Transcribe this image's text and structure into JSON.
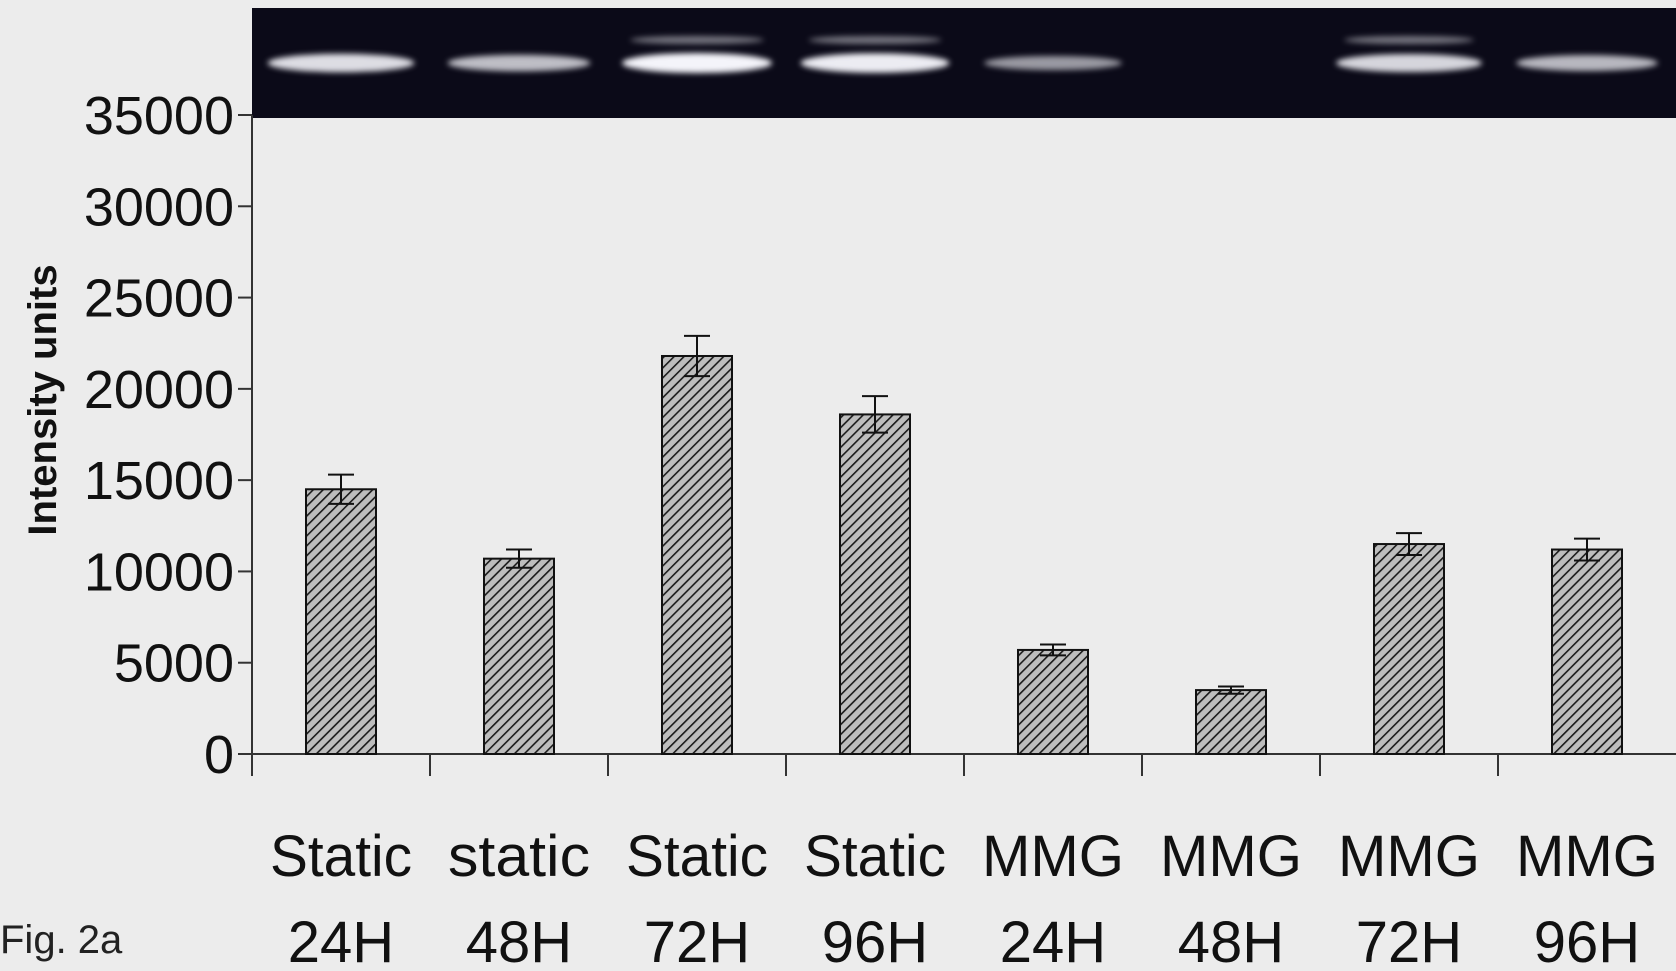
{
  "figure_label": "Fig. 2a",
  "colors": {
    "background": "#ececec",
    "bar_fill": "#bdbdbd",
    "bar_hatch": "#1a1a1a",
    "gel_background": "#0b0a18",
    "gel_band": "#f4f4fa",
    "axis": "#333333"
  },
  "chart_data": {
    "type": "bar",
    "title": "",
    "xlabel": "",
    "ylabel": "Intensity units",
    "ylim": [
      0,
      35000
    ],
    "yticks": [
      0,
      5000,
      10000,
      15000,
      20000,
      25000,
      30000,
      35000
    ],
    "grid": false,
    "legend": "none",
    "categories": [
      [
        "Static",
        "24H"
      ],
      [
        "static",
        "48H"
      ],
      [
        "Static",
        "72H"
      ],
      [
        "Static",
        "96H"
      ],
      [
        "MMG",
        "24H"
      ],
      [
        "MMG",
        "48H"
      ],
      [
        "MMG",
        "72H"
      ],
      [
        "MMG",
        "96H"
      ]
    ],
    "series": [
      {
        "values": [
          14500,
          10700,
          21800,
          18600,
          5700,
          3500,
          11500,
          11200
        ],
        "errors": [
          800,
          500,
          1100,
          1000,
          300,
          200,
          600,
          600
        ]
      }
    ],
    "inset_image": "gel-electrophoresis-bands",
    "band_intensity": [
      0.85,
      0.65,
      1.0,
      0.95,
      0.4,
      0.0,
      0.8,
      0.6
    ]
  }
}
